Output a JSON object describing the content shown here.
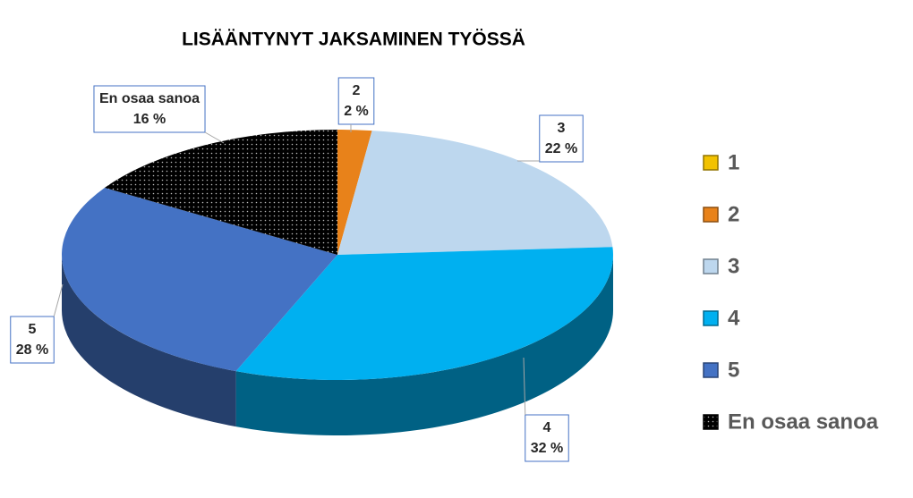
{
  "chart_data": {
    "type": "pie",
    "title": "LISÄÄNTYNYT JAKSAMINEN TYÖSSÄ",
    "categories": [
      "1",
      "2",
      "3",
      "4",
      "5",
      "En osaa sanoa"
    ],
    "values": [
      0,
      2,
      22,
      32,
      28,
      16
    ],
    "value_labels": [
      null,
      "2 %",
      "22 %",
      "32 %",
      "28 %",
      "16 %"
    ],
    "colors": [
      "#f2c200",
      "#e8821a",
      "#bdd7ee",
      "#00b0f0",
      "#4472c4",
      "#000000"
    ],
    "patterns": [
      null,
      null,
      null,
      null,
      null,
      "dots"
    ],
    "legend": "right"
  }
}
